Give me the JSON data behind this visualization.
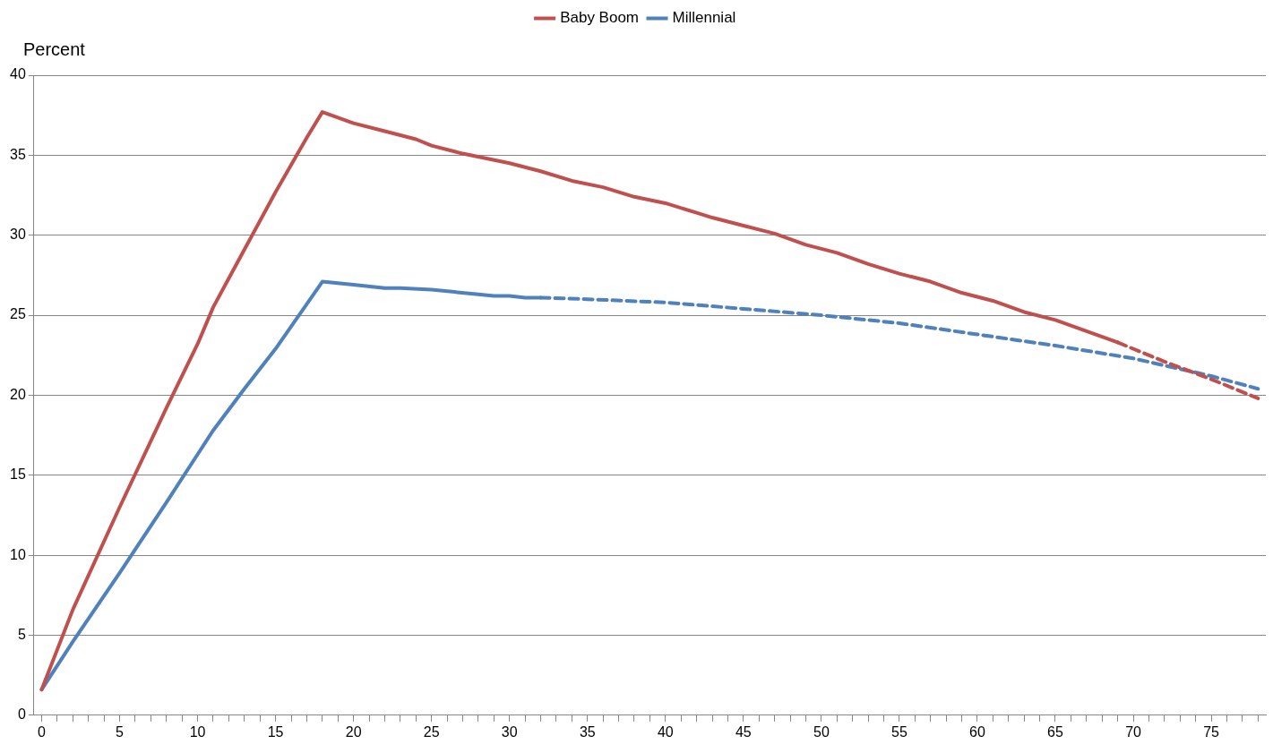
{
  "chart_data": {
    "type": "line",
    "ylabel": "Percent",
    "legend": "top",
    "grid": "y",
    "marker": "none",
    "xlim": [
      -0.5,
      78.5
    ],
    "xticks": [
      0,
      {
        "value": 1,
        "label": null
      },
      {
        "value": 2,
        "label": null
      },
      {
        "value": 3,
        "label": null
      },
      {
        "value": 4,
        "label": null
      },
      5,
      {
        "value": 6,
        "label": null
      },
      {
        "value": 7,
        "label": null
      },
      {
        "value": 8,
        "label": null
      },
      {
        "value": 9,
        "label": null
      },
      10,
      {
        "value": 11,
        "label": null
      },
      {
        "value": 12,
        "label": null
      },
      {
        "value": 13,
        "label": null
      },
      {
        "value": 14,
        "label": null
      },
      15,
      {
        "value": 16,
        "label": null
      },
      {
        "value": 17,
        "label": null
      },
      {
        "value": 18,
        "label": null
      },
      {
        "value": 19,
        "label": null
      },
      20,
      {
        "value": 21,
        "label": null
      },
      {
        "value": 22,
        "label": null
      },
      {
        "value": 23,
        "label": null
      },
      {
        "value": 24,
        "label": null
      },
      25,
      {
        "value": 26,
        "label": null
      },
      {
        "value": 27,
        "label": null
      },
      {
        "value": 28,
        "label": null
      },
      {
        "value": 29,
        "label": null
      },
      30,
      {
        "value": 31,
        "label": null
      },
      {
        "value": 32,
        "label": null
      },
      {
        "value": 33,
        "label": null
      },
      {
        "value": 34,
        "label": null
      },
      35,
      {
        "value": 36,
        "label": null
      },
      {
        "value": 37,
        "label": null
      },
      {
        "value": 38,
        "label": null
      },
      {
        "value": 39,
        "label": null
      },
      40,
      {
        "value": 41,
        "label": null
      },
      {
        "value": 42,
        "label": null
      },
      {
        "value": 43,
        "label": null
      },
      {
        "value": 44,
        "label": null
      },
      45,
      {
        "value": 46,
        "label": null
      },
      {
        "value": 47,
        "label": null
      },
      {
        "value": 48,
        "label": null
      },
      {
        "value": 49,
        "label": null
      },
      50,
      {
        "value": 51,
        "label": null
      },
      {
        "value": 52,
        "label": null
      },
      {
        "value": 53,
        "label": null
      },
      {
        "value": 54,
        "label": null
      },
      55,
      {
        "value": 56,
        "label": null
      },
      {
        "value": 57,
        "label": null
      },
      {
        "value": 58,
        "label": null
      },
      {
        "value": 59,
        "label": null
      },
      60,
      {
        "value": 61,
        "label": null
      },
      {
        "value": 62,
        "label": null
      },
      {
        "value": 63,
        "label": null
      },
      {
        "value": 64,
        "label": null
      },
      65,
      {
        "value": 66,
        "label": null
      },
      {
        "value": 67,
        "label": null
      },
      {
        "value": 68,
        "label": null
      },
      {
        "value": 69,
        "label": null
      },
      70,
      {
        "value": 71,
        "label": null
      },
      {
        "value": 72,
        "label": null
      },
      {
        "value": 73,
        "label": null
      },
      {
        "value": 74,
        "label": null
      },
      75,
      {
        "value": 76,
        "label": null
      },
      {
        "value": 77,
        "label": null
      },
      {
        "value": 78,
        "label": null
      }
    ],
    "ylim": [
      0,
      40
    ],
    "yticks": [
      0,
      5,
      10,
      15,
      20,
      25,
      30,
      35,
      40
    ],
    "series": [
      {
        "name": "Baby Boom",
        "color": "#c0504d",
        "line_style": "solid",
        "x": [
          0,
          2,
          5,
          8,
          10,
          11,
          13,
          15,
          17,
          18,
          20,
          22,
          24,
          25,
          27,
          30,
          32,
          34,
          36,
          38,
          40,
          42,
          43,
          45,
          47,
          49,
          51,
          53,
          55,
          57,
          59,
          61,
          63,
          65,
          67,
          69
        ],
        "values": [
          1.6,
          6.6,
          13.0,
          19.2,
          23.2,
          25.5,
          29.1,
          32.7,
          36.1,
          37.7,
          37.0,
          36.5,
          36.0,
          35.6,
          35.1,
          34.5,
          34.0,
          33.4,
          33.0,
          32.4,
          32.0,
          31.4,
          31.1,
          30.6,
          30.1,
          29.4,
          28.9,
          28.2,
          27.6,
          27.1,
          26.4,
          25.9,
          25.2,
          24.7,
          24.0,
          23.3
        ]
      },
      {
        "name": "Millennial",
        "color": "#4f81bd",
        "line_style": "solid",
        "x": [
          0,
          2,
          5,
          8,
          10,
          11,
          13,
          15,
          18,
          20,
          22,
          23,
          25,
          28,
          29,
          30,
          31,
          32
        ],
        "values": [
          1.6,
          4.6,
          8.9,
          13.3,
          16.3,
          17.8,
          20.4,
          22.9,
          27.1,
          26.9,
          26.7,
          26.7,
          26.6,
          26.3,
          26.2,
          26.2,
          26.1,
          26.1
        ]
      },
      {
        "color": "#c0504d",
        "line_style": "dashed",
        "x": [
          69,
          72,
          75,
          78
        ],
        "values": [
          23.3,
          22.1,
          21.0,
          19.8
        ]
      },
      {
        "color": "#4f81bd",
        "line_style": "dashed",
        "x": [
          32,
          35,
          40,
          45,
          50,
          55,
          60,
          65,
          70,
          75,
          78
        ],
        "values": [
          26.1,
          26.0,
          25.8,
          25.4,
          25.0,
          24.5,
          23.8,
          23.1,
          22.3,
          21.2,
          20.4
        ]
      }
    ]
  }
}
